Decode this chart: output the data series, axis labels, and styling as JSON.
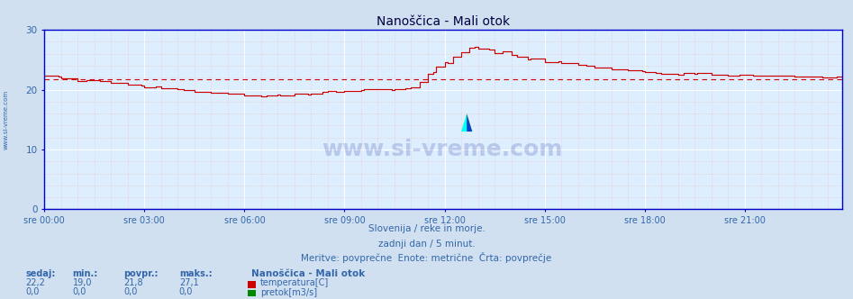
{
  "title": "Nanoščica - Mali otok",
  "background_color": "#d0e0f0",
  "plot_bg_color": "#ddeeff",
  "grid_color_major": "#ffffff",
  "grid_color_minor": "#ffaaaa",
  "axis_color": "#0000cc",
  "title_color": "#000044",
  "label_color": "#3366aa",
  "temp_line_color": "#cc0000",
  "avg_line_color": "#cc0000",
  "pretok_line_color": "#008800",
  "ylim": [
    0,
    30
  ],
  "xlim": [
    0,
    287
  ],
  "yticks": [
    0,
    10,
    20,
    30
  ],
  "xtick_labels": [
    "sre 00:00",
    "sre 03:00",
    "sre 06:00",
    "sre 09:00",
    "sre 12:00",
    "sre 15:00",
    "sre 18:00",
    "sre 21:00"
  ],
  "xtick_positions": [
    0,
    36,
    72,
    108,
    144,
    180,
    216,
    252
  ],
  "avg_value": 21.8,
  "subtitle1": "Slovenija / reke in morje.",
  "subtitle2": "zadnji dan / 5 minut.",
  "subtitle3": "Meritve: povprečne  Enote: metrične  Črta: povprečje",
  "stat_headers": [
    "sedaj:",
    "min.:",
    "povpr.:",
    "maks.:"
  ],
  "stat_temp": [
    "22,2",
    "19,0",
    "21,8",
    "27,1"
  ],
  "stat_pretok": [
    "0,0",
    "0,0",
    "0,0",
    "0,0"
  ],
  "legend_title": "Nanoščica - Mali otok",
  "legend_temp": "temperatura[C]",
  "legend_pretok": "pretok[m3/s]",
  "watermark": "www.si-vreme.com",
  "left_label": "www.si-vreme.com"
}
